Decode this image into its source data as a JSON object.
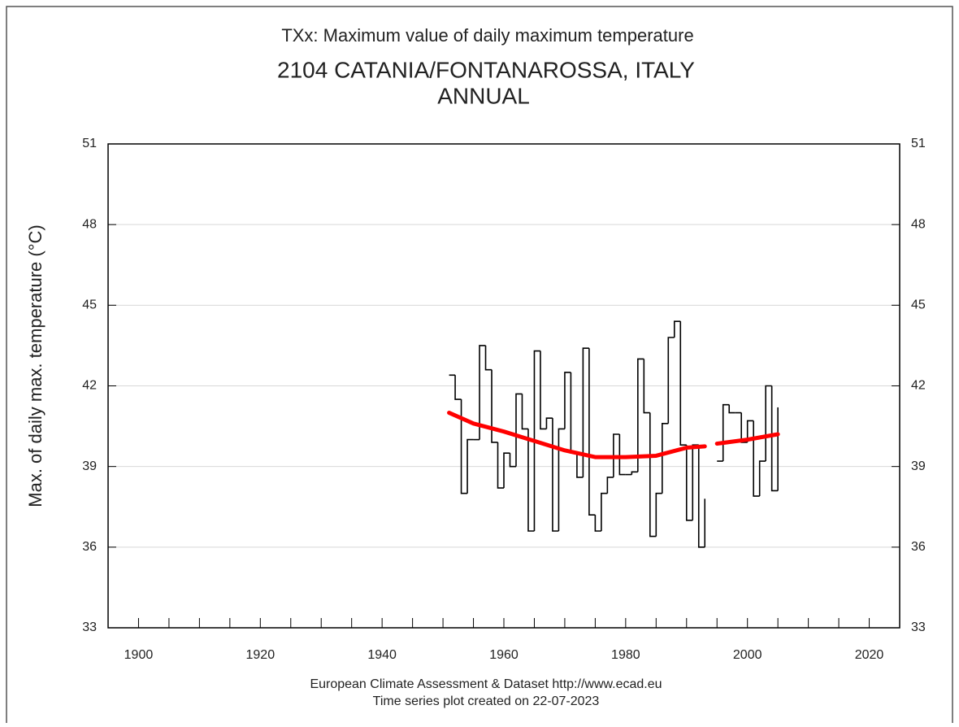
{
  "chart_data": {
    "type": "step",
    "title": "TXx: Maximum value of daily maximum temperature",
    "subtitle": "2104 CATANIA/FONTANAROSSA, ITALY",
    "period": "ANNUAL",
    "ylabel": "Max. of daily max. temperature (°C)",
    "footer": [
      "European Climate Assessment & Dataset  http://www.ecad.eu",
      "Time series plot created on 22-07-2023"
    ],
    "xlim": [
      1895,
      2025
    ],
    "xticks": [
      1900,
      1920,
      1940,
      1960,
      1980,
      2000,
      2020
    ],
    "xticks_minor": [
      1905,
      1910,
      1915,
      1925,
      1930,
      1935,
      1945,
      1950,
      1955,
      1965,
      1970,
      1975,
      1985,
      1990,
      1995,
      2005,
      2010,
      2015
    ],
    "ylim": [
      33,
      51
    ],
    "yticks": [
      33,
      36,
      39,
      42,
      45,
      48,
      51
    ],
    "y2lim": [
      33,
      51
    ],
    "y2ticks": [
      33,
      36,
      39,
      42,
      45,
      48,
      51
    ],
    "grid": true,
    "series": [
      {
        "type": "step",
        "color": "#000000",
        "x": [
          1951,
          1952,
          1953,
          1954,
          1955,
          1956,
          1957,
          1958,
          1959,
          1960,
          1961,
          1962,
          1963,
          1964,
          1965,
          1966,
          1967,
          1968,
          1969,
          1970,
          1971,
          1972,
          1973,
          1974,
          1975,
          1976,
          1977,
          1978,
          1979,
          1980,
          1981,
          1982,
          1983,
          1984,
          1985,
          1986,
          1987,
          1988,
          1989,
          1990,
          1991,
          1992,
          1993,
          1994,
          1995,
          1996,
          1997,
          1998,
          1999,
          2000,
          2001,
          2002,
          2003,
          2004,
          2005
        ],
        "values": [
          42.4,
          41.5,
          38.0,
          40.0,
          40.0,
          43.5,
          42.6,
          39.9,
          38.2,
          39.5,
          39.0,
          41.7,
          40.4,
          36.6,
          43.3,
          40.4,
          40.8,
          36.6,
          40.4,
          42.5,
          39.5,
          38.6,
          43.4,
          37.2,
          36.6,
          38.0,
          38.6,
          40.2,
          38.7,
          38.7,
          38.8,
          43.0,
          41.0,
          36.4,
          38.0,
          40.6,
          43.8,
          44.4,
          39.8,
          37.0,
          39.8,
          36.0,
          37.8,
          null,
          39.2,
          41.3,
          41.0,
          41.0,
          39.9,
          40.7,
          37.9,
          39.2,
          42.0,
          38.1,
          41.2
        ]
      },
      {
        "type": "line",
        "color": "#ff0000",
        "x": [
          1951,
          1955,
          1960,
          1965,
          1970,
          1975,
          1980,
          1985,
          1990,
          1993,
          1994,
          1995,
          2000,
          2005
        ],
        "values": [
          41.0,
          40.6,
          40.3,
          39.95,
          39.6,
          39.35,
          39.35,
          39.4,
          39.7,
          39.75,
          null,
          39.85,
          40.0,
          40.2
        ]
      }
    ]
  }
}
